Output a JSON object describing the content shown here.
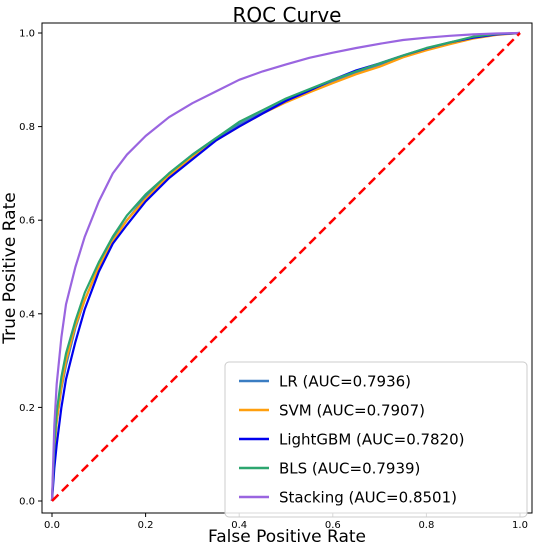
{
  "chart_data": {
    "type": "line",
    "title": "ROC Curve",
    "xlabel": "False Positive Rate",
    "ylabel": "True Positive Rate",
    "xlim": [
      0.0,
      1.0
    ],
    "ylim": [
      0.0,
      1.0
    ],
    "xticks": [
      "0.0",
      "0.2",
      "0.4",
      "0.6",
      "0.8",
      "1.0"
    ],
    "yticks": [
      "0.0",
      "0.2",
      "0.4",
      "0.6",
      "0.8",
      "1.0"
    ],
    "legend_position": "lower-right",
    "grid": false,
    "series": [
      {
        "name": "LR (AUC=0.7936)",
        "color": "#3a7dc2",
        "x": [
          0,
          0.005,
          0.01,
          0.02,
          0.03,
          0.05,
          0.07,
          0.1,
          0.13,
          0.16,
          0.2,
          0.25,
          0.3,
          0.35,
          0.4,
          0.45,
          0.5,
          0.55,
          0.6,
          0.65,
          0.7,
          0.75,
          0.8,
          0.85,
          0.9,
          0.95,
          1.0
        ],
        "y": [
          0,
          0.11,
          0.17,
          0.24,
          0.29,
          0.37,
          0.43,
          0.5,
          0.56,
          0.6,
          0.65,
          0.7,
          0.74,
          0.775,
          0.805,
          0.83,
          0.855,
          0.875,
          0.895,
          0.915,
          0.93,
          0.95,
          0.965,
          0.978,
          0.99,
          0.997,
          1.0
        ]
      },
      {
        "name": "SVM (AUC=0.7907)",
        "color": "#ff9f0e",
        "x": [
          0,
          0.005,
          0.01,
          0.02,
          0.03,
          0.05,
          0.07,
          0.1,
          0.13,
          0.16,
          0.2,
          0.25,
          0.3,
          0.35,
          0.4,
          0.45,
          0.5,
          0.55,
          0.6,
          0.65,
          0.7,
          0.75,
          0.8,
          0.85,
          0.9,
          0.95,
          1.0
        ],
        "y": [
          0,
          0.11,
          0.17,
          0.245,
          0.3,
          0.375,
          0.43,
          0.5,
          0.555,
          0.6,
          0.645,
          0.695,
          0.735,
          0.77,
          0.8,
          0.828,
          0.852,
          0.873,
          0.893,
          0.912,
          0.928,
          0.948,
          0.963,
          0.976,
          0.988,
          0.996,
          1.0
        ]
      },
      {
        "name": "LightGBM (AUC=0.7820)",
        "color": "#0000ee",
        "x": [
          0,
          0.005,
          0.01,
          0.02,
          0.03,
          0.05,
          0.07,
          0.1,
          0.13,
          0.16,
          0.2,
          0.25,
          0.3,
          0.35,
          0.4,
          0.45,
          0.5,
          0.55,
          0.6,
          0.65,
          0.7,
          0.75,
          0.8,
          0.85,
          0.9,
          0.95,
          1.0
        ],
        "y": [
          0,
          0.07,
          0.12,
          0.2,
          0.26,
          0.34,
          0.41,
          0.49,
          0.55,
          0.59,
          0.64,
          0.69,
          0.73,
          0.77,
          0.8,
          0.828,
          0.855,
          0.877,
          0.9,
          0.92,
          0.935,
          0.952,
          0.967,
          0.98,
          0.99,
          0.997,
          1.0
        ]
      },
      {
        "name": "BLS (AUC=0.7939)",
        "color": "#2ca66f",
        "x": [
          0,
          0.005,
          0.01,
          0.02,
          0.03,
          0.05,
          0.07,
          0.1,
          0.13,
          0.16,
          0.2,
          0.25,
          0.3,
          0.35,
          0.4,
          0.45,
          0.5,
          0.55,
          0.6,
          0.65,
          0.7,
          0.75,
          0.8,
          0.85,
          0.9,
          0.95,
          1.0
        ],
        "y": [
          0,
          0.12,
          0.19,
          0.265,
          0.315,
          0.385,
          0.445,
          0.51,
          0.565,
          0.61,
          0.655,
          0.7,
          0.74,
          0.775,
          0.81,
          0.835,
          0.86,
          0.88,
          0.9,
          0.918,
          0.935,
          0.952,
          0.968,
          0.98,
          0.992,
          0.998,
          1.0
        ]
      },
      {
        "name": "Stacking (AUC=0.8501)",
        "color": "#9a65e0",
        "x": [
          0,
          0.005,
          0.01,
          0.02,
          0.03,
          0.05,
          0.07,
          0.1,
          0.13,
          0.16,
          0.2,
          0.25,
          0.3,
          0.35,
          0.4,
          0.45,
          0.5,
          0.55,
          0.6,
          0.65,
          0.7,
          0.75,
          0.8,
          0.85,
          0.9,
          0.95,
          1.0
        ],
        "y": [
          0,
          0.16,
          0.25,
          0.35,
          0.42,
          0.5,
          0.565,
          0.64,
          0.7,
          0.74,
          0.78,
          0.82,
          0.85,
          0.875,
          0.9,
          0.918,
          0.933,
          0.947,
          0.958,
          0.968,
          0.977,
          0.985,
          0.99,
          0.994,
          0.997,
          0.999,
          1.0
        ]
      },
      {
        "name": "",
        "color": "#ff0000",
        "dashed": true,
        "x": [
          0,
          1
        ],
        "y": [
          0,
          1
        ]
      }
    ]
  }
}
